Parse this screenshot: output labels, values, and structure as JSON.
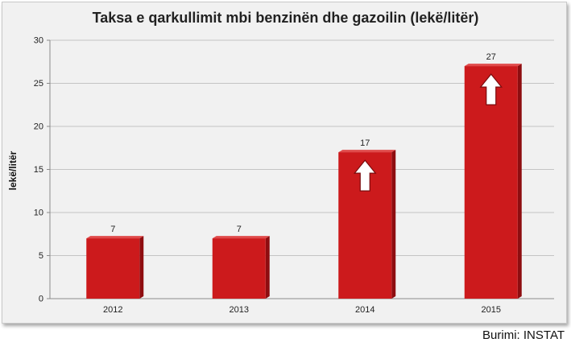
{
  "chart_data": {
    "type": "bar",
    "title": "Taksa e qarkullimit mbi benzinën dhe gazoilin (lekë/litër)",
    "ylabel": "lekë/litër",
    "xlabel": "",
    "categories": [
      "2012",
      "2013",
      "2014",
      "2015"
    ],
    "values": [
      7,
      7,
      17,
      27
    ],
    "ylim": [
      0,
      30
    ],
    "yticks": [
      0,
      5,
      10,
      15,
      20,
      25,
      30
    ],
    "up_arrows": [
      false,
      false,
      true,
      true
    ],
    "grid": true,
    "bar_color": "#cc1a1c",
    "bar_side_color": "#8e0d10",
    "source": "Burimi: INSTAT"
  }
}
